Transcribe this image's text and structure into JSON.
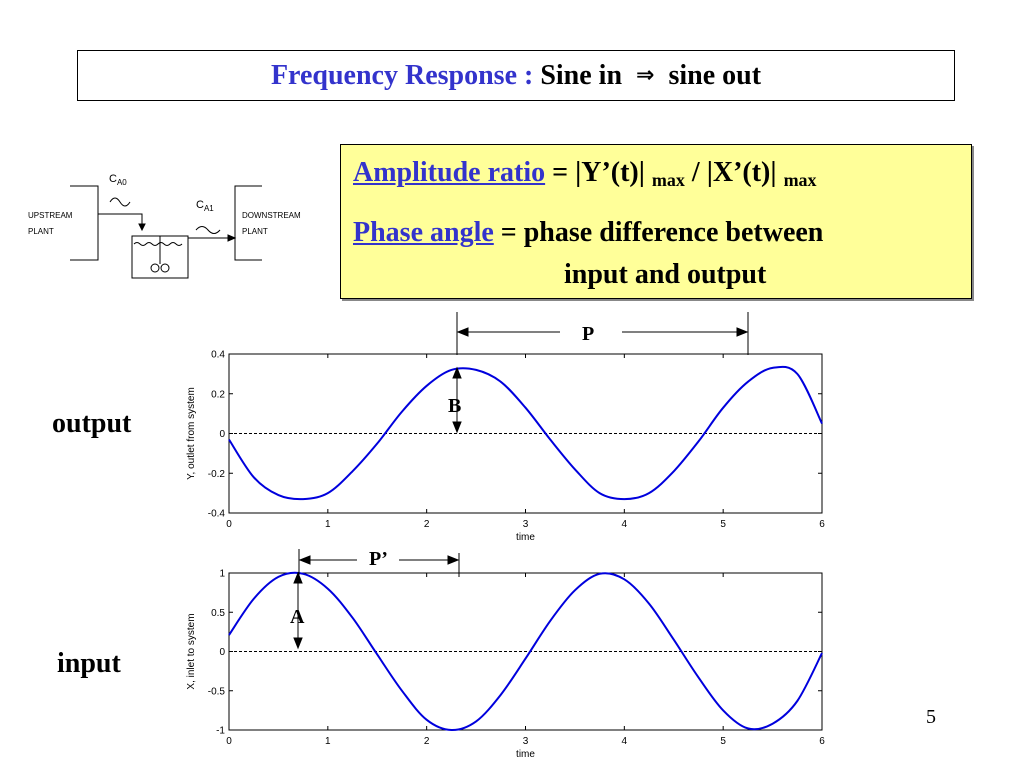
{
  "slide": {
    "title_colored": "Frequency Response :",
    "title_rest_a": "Sine in",
    "title_arrow": "⇒",
    "title_rest_b": "sine out",
    "page_number": "5"
  },
  "definitions": {
    "amp_term": "Amplitude ratio",
    "amp_eq": " = |Y’(t)| ",
    "amp_sub1": "max",
    "amp_mid": " / |X’(t)| ",
    "amp_sub2": "max",
    "phase_term": "Phase angle",
    "phase_rest": " = phase difference between",
    "phase_cont": "input and output"
  },
  "labels": {
    "output": "output",
    "input": "input"
  },
  "diagram": {
    "ca0": "C",
    "ca0_sub": "A0",
    "ca1": "C",
    "ca1_sub": "A1",
    "upstream1": "UPSTREAM",
    "upstream2": "PLANT",
    "downstream1": "DOWNSTREAM",
    "downstream2": "PLANT"
  },
  "annotations": {
    "P": "P",
    "B": "B",
    "P_prime": "P’",
    "A": "A"
  },
  "colors": {
    "curve": "#0000dd",
    "title_blue": "#3333cc",
    "box_fill": "#ffff99"
  },
  "chart_data": [
    {
      "type": "line",
      "xlabel": "time",
      "ylabel": "Y,  outlet from system",
      "xlim": [
        0,
        6
      ],
      "ylim": [
        -0.4,
        0.4
      ],
      "xticks": [
        "0",
        "1",
        "2",
        "3",
        "4",
        "5",
        "6"
      ],
      "yticks": [
        "0.4",
        "0.2",
        "0",
        "-0.2",
        "-0.4"
      ],
      "baseline": 0,
      "series": [
        {
          "x": [
            0,
            0.25,
            0.5,
            0.75,
            1,
            1.25,
            1.5,
            1.75,
            2,
            2.25,
            2.5,
            2.75,
            3,
            3.25,
            3.5,
            3.75,
            4,
            4.25,
            4.5,
            4.75,
            5,
            5.25,
            5.5,
            5.75,
            6
          ],
          "values": [
            -0.03,
            -0.22,
            -0.31,
            -0.33,
            -0.3,
            -0.19,
            -0.05,
            0.11,
            0.24,
            0.32,
            0.32,
            0.26,
            0.13,
            -0.03,
            -0.18,
            -0.3,
            -0.33,
            -0.3,
            -0.19,
            -0.04,
            0.13,
            0.26,
            0.33,
            0.3,
            0.05
          ]
        }
      ]
    },
    {
      "type": "line",
      "xlabel": "time",
      "ylabel": "X,  inlet to system",
      "xlim": [
        0,
        6
      ],
      "ylim": [
        -1,
        1
      ],
      "xticks": [
        "0",
        "1",
        "2",
        "3",
        "4",
        "5",
        "6"
      ],
      "yticks": [
        "1",
        "0.5",
        "0",
        "-0.5",
        "-1"
      ],
      "baseline": 0,
      "series": [
        {
          "x": [
            0,
            0.25,
            0.5,
            0.75,
            1,
            1.25,
            1.5,
            1.75,
            2,
            2.25,
            2.5,
            2.75,
            3,
            3.25,
            3.5,
            3.75,
            4,
            4.25,
            4.5,
            4.75,
            5,
            5.25,
            5.5,
            5.75,
            6
          ],
          "values": [
            0.21,
            0.67,
            0.95,
            0.99,
            0.8,
            0.43,
            -0.04,
            -0.5,
            -0.87,
            -1.0,
            -0.89,
            -0.55,
            -0.09,
            0.39,
            0.78,
            0.99,
            0.92,
            0.61,
            0.15,
            -0.33,
            -0.75,
            -0.98,
            -0.92,
            -0.63,
            -0.02
          ]
        }
      ]
    }
  ]
}
